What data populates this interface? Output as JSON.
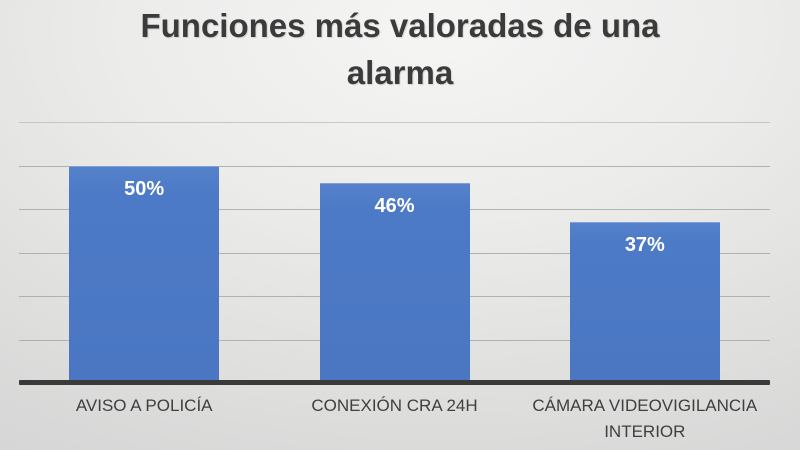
{
  "chart_data": {
    "type": "bar",
    "title": "Funciones más valoradas de una\nalarma",
    "title_flat": "Funciones más valoradas de una alarma",
    "categories": [
      "AVISO A POLICÍA",
      "CONEXIÓN CRA 24H",
      "CÁMARA VIDEOVIGILANCIA INTERIOR"
    ],
    "values": [
      50,
      46,
      37
    ],
    "data_labels": [
      "50%",
      "46%",
      "37%"
    ],
    "xlabel": "",
    "ylabel": "",
    "ylim": [
      0,
      60
    ],
    "grid_step": 10,
    "grid": "on",
    "legend": "none",
    "axis_tick_labels": "none",
    "colors": {
      "bar": "#4d7ac6",
      "bar_value_label": "#ffffff",
      "gridline": "#a8a8a8",
      "axis_line": "#3a3a3a",
      "title_text": "#3b3b3b",
      "category_text": "#3f3f3f",
      "background_light": "#f5f5f4",
      "background_dark": "#cbcdcc"
    }
  }
}
